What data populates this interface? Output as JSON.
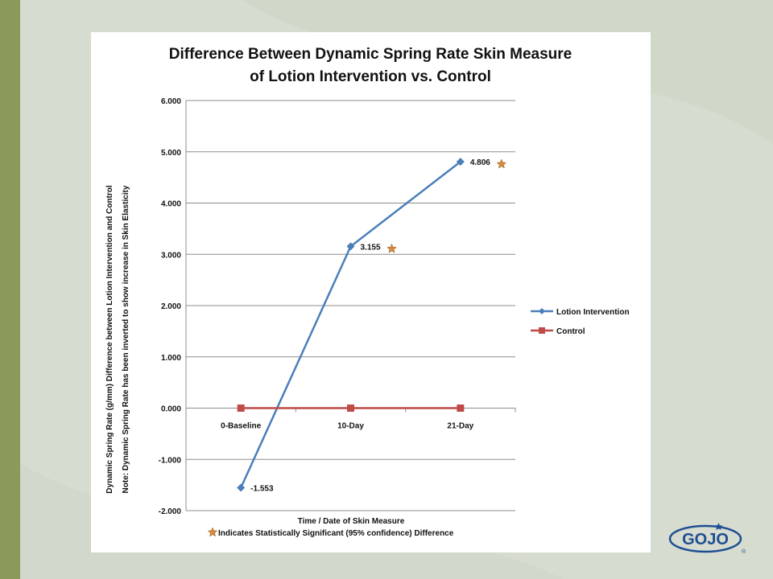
{
  "chart_data": {
    "type": "line",
    "title_line1": "Difference Between Dynamic Spring Rate Skin Measure",
    "title_line2": "of Lotion Intervention vs. Control",
    "categories": [
      "0-Baseline",
      "10-Day",
      "21-Day"
    ],
    "series": [
      {
        "name": "Lotion Intervention",
        "values": [
          -1.553,
          3.155,
          4.806
        ],
        "color": "#4a7ebb",
        "marker": "diamond"
      },
      {
        "name": "Control",
        "values": [
          0,
          0,
          0
        ],
        "color": "#be4b48",
        "marker": "square"
      }
    ],
    "data_labels": [
      "-1.553",
      "3.155",
      "4.806"
    ],
    "significant_points": [
      1,
      2
    ],
    "ylim": [
      -2,
      6
    ],
    "yticks": [
      "6.000",
      "5.000",
      "4.000",
      "3.000",
      "2.000",
      "1.000",
      "0.000",
      "-1.000",
      "-2.000"
    ],
    "ylabel_line1": "Dynamic Spring Rate  (g/mm) Difference between Lotion Intervention and Control",
    "ylabel_line2": "Note: Dynamic Spring Rate  has  been inverted to show increase in Skin Elasticity",
    "xlabel": "Time / Date of Skin Measure",
    "footnote": "Indicates Statistically Significant (95% confidence) Difference",
    "grid": true,
    "legend_position": "right",
    "star_color": "#d98a3a"
  },
  "logo": {
    "text": "GOJO",
    "mark": "®",
    "color": "#1f4f93"
  }
}
